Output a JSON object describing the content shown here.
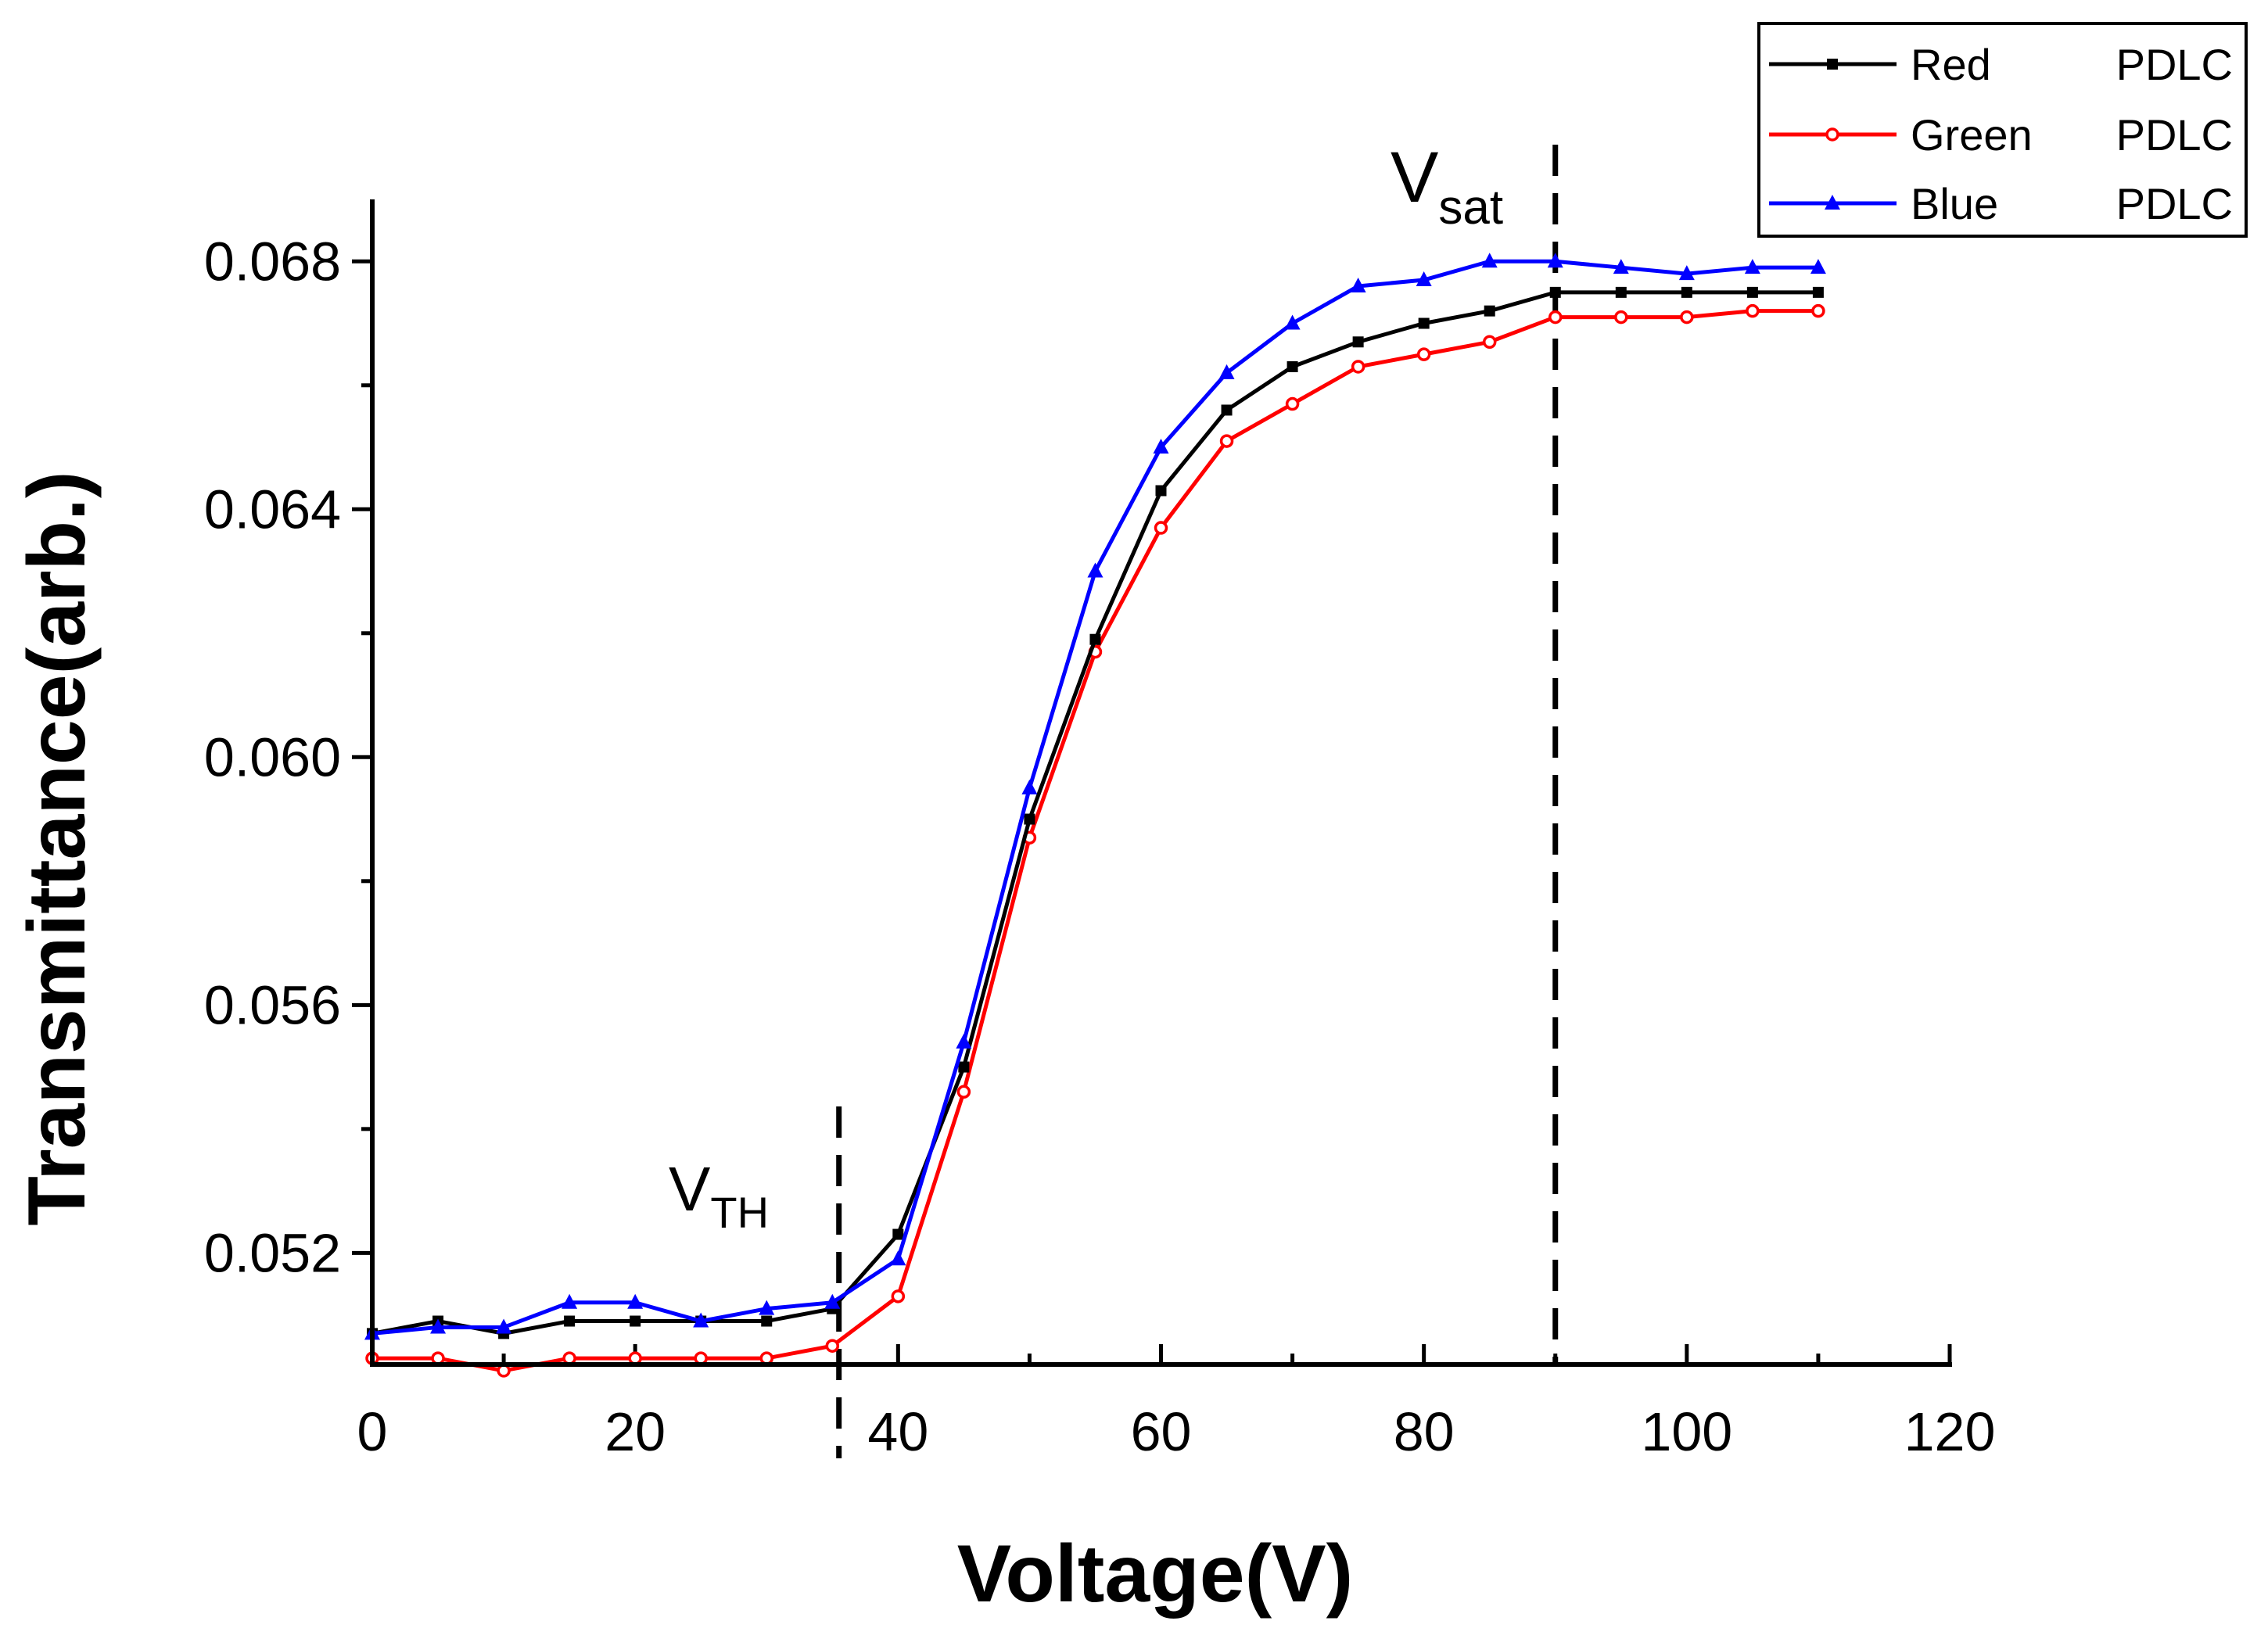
{
  "chart_data": {
    "type": "line",
    "xlabel": "Voltage(V)",
    "ylabel": "Transmittance(arb.)",
    "xlim": [
      0,
      120
    ],
    "ylim": [
      0.0502,
      0.069
    ],
    "x_ticks": [
      0,
      20,
      40,
      60,
      80,
      100,
      120
    ],
    "x_tick_labels": [
      "0",
      "20",
      "40",
      "60",
      "80",
      "100",
      "120"
    ],
    "y_ticks": [
      0.052,
      0.056,
      0.06,
      0.064,
      0.068
    ],
    "y_tick_labels": [
      "0.052",
      "0.056",
      "0.060",
      "0.064",
      "0.068"
    ],
    "legend_position": "top-right",
    "x": [
      0,
      5,
      10,
      15,
      20,
      25,
      30,
      35,
      40,
      45,
      50,
      55,
      60,
      65,
      70,
      75,
      80,
      85,
      90,
      95,
      100,
      105,
      110
    ],
    "series": [
      {
        "name": "Red",
        "legend_suffix": "PDLC",
        "color": "#000000",
        "marker": "square",
        "values": [
          0.0507,
          0.0509,
          0.0507,
          0.0509,
          0.0509,
          0.0509,
          0.0509,
          0.0511,
          0.0523,
          0.055,
          0.059,
          0.0619,
          0.0643,
          0.0656,
          0.0663,
          0.0667,
          0.067,
          0.0672,
          0.0675,
          0.0675,
          0.0675,
          0.0675,
          0.0675
        ]
      },
      {
        "name": "Green",
        "legend_suffix": "PDLC",
        "color": "#ff0000",
        "marker": "open-circle",
        "values": [
          0.0503,
          0.0503,
          0.0501,
          0.0503,
          0.0503,
          0.0503,
          0.0503,
          0.0505,
          0.0513,
          0.0546,
          0.0587,
          0.0617,
          0.0637,
          0.0651,
          0.0657,
          0.0663,
          0.0665,
          0.0667,
          0.0671,
          0.0671,
          0.0671,
          0.0672,
          0.0672
        ]
      },
      {
        "name": "Blue",
        "legend_suffix": "PDLC",
        "color": "#0000ff",
        "marker": "triangle",
        "values": [
          0.0507,
          0.0508,
          0.0508,
          0.0512,
          0.0512,
          0.0509,
          0.0511,
          0.0512,
          0.0519,
          0.0554,
          0.0595,
          0.063,
          0.065,
          0.0662,
          0.067,
          0.0676,
          0.0677,
          0.068,
          0.068,
          0.0679,
          0.0678,
          0.0679,
          0.0679
        ]
      }
    ],
    "annotations": [
      {
        "main": "V",
        "sub": "TH",
        "x": 35.5
      },
      {
        "main": "V",
        "sub": "sat",
        "x": 90
      }
    ]
  }
}
